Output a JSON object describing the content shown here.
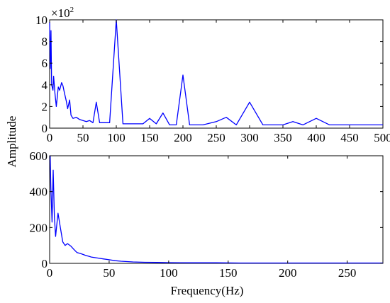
{
  "figure": {
    "ylabel": "Amplitude",
    "xlabel": "Frequency(Hz)",
    "line_color": "#0000ff"
  },
  "chart_data": [
    {
      "type": "line",
      "title": "",
      "xlabel": "",
      "ylabel": "Amplitude",
      "multiplier_base": "×10",
      "multiplier_exp": "2",
      "xlim": [
        0,
        500
      ],
      "ylim": [
        0,
        10
      ],
      "x_ticks": [
        "0",
        "50",
        "100",
        "150",
        "200",
        "250",
        "300",
        "350",
        "400",
        "450",
        "500"
      ],
      "y_ticks": [
        "0",
        "2",
        "4",
        "6",
        "8",
        "10"
      ],
      "grid": false,
      "series": [
        {
          "color": "#0000ff",
          "x": [
            0,
            1,
            2,
            3,
            5,
            6,
            8,
            10,
            13,
            15,
            18,
            20,
            22,
            25,
            27,
            30,
            32,
            35,
            40,
            45,
            50,
            55,
            60,
            65,
            70,
            75,
            80,
            90,
            100,
            110,
            120,
            130,
            140,
            150,
            160,
            170,
            180,
            190,
            200,
            210,
            230,
            250,
            265,
            280,
            300,
            320,
            350,
            365,
            380,
            400,
            420,
            450,
            480,
            500
          ],
          "y": [
            9.8,
            5.5,
            9.0,
            4.0,
            3.5,
            4.8,
            3.2,
            2.0,
            3.8,
            3.5,
            4.2,
            3.9,
            3.3,
            2.5,
            1.8,
            2.6,
            1.2,
            0.9,
            1.0,
            0.8,
            0.7,
            0.6,
            0.7,
            0.5,
            2.4,
            0.5,
            0.5,
            0.5,
            10.0,
            0.4,
            0.4,
            0.4,
            0.4,
            0.9,
            0.4,
            1.4,
            0.3,
            0.3,
            4.9,
            0.3,
            0.3,
            0.6,
            1.0,
            0.3,
            2.4,
            0.3,
            0.3,
            0.6,
            0.3,
            0.9,
            0.3,
            0.3,
            0.3,
            0.3
          ]
        }
      ]
    },
    {
      "type": "line",
      "title": "",
      "xlabel": "Frequency(Hz)",
      "ylabel": "Amplitude",
      "xlim": [
        0,
        280
      ],
      "ylim": [
        0,
        600
      ],
      "x_ticks": [
        "0",
        "50",
        "100",
        "150",
        "200",
        "250"
      ],
      "y_ticks": [
        "0",
        "200",
        "400",
        "600"
      ],
      "grid": false,
      "series": [
        {
          "color": "#0000ff",
          "x": [
            0,
            0.5,
            1,
            2,
            3,
            4,
            5,
            7,
            9,
            11,
            13,
            15,
            18,
            20,
            23,
            26,
            30,
            35,
            40,
            45,
            50,
            55,
            60,
            70,
            80,
            90,
            100,
            120,
            140,
            160,
            180,
            200,
            220,
            240,
            260,
            280
          ],
          "y": [
            590,
            600,
            420,
            230,
            520,
            260,
            150,
            280,
            200,
            120,
            100,
            110,
            95,
            80,
            60,
            55,
            45,
            35,
            30,
            25,
            20,
            15,
            12,
            8,
            6,
            5,
            4,
            3,
            3,
            2,
            2,
            2,
            2,
            2,
            2,
            2
          ]
        }
      ]
    }
  ]
}
